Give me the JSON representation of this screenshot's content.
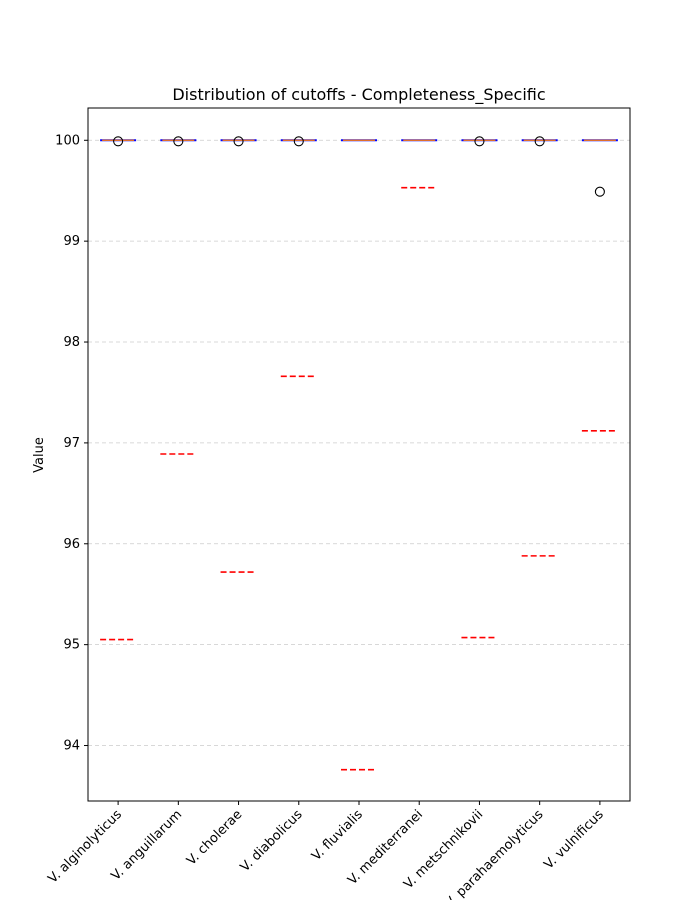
{
  "chart_data": {
    "type": "box",
    "title": "Distribution of cutoffs - Completeness_Specific",
    "xlabel": "",
    "ylabel": "Value",
    "ylim": [
      93.45,
      100.32
    ],
    "yticks": [
      94,
      95,
      96,
      97,
      98,
      99,
      100
    ],
    "grid": "horizontal dashed",
    "categories": [
      "V. alginolyticus",
      "V. anguillarum",
      "V. cholerae",
      "V. diabolicus",
      "V. fluvialis",
      "V. mediterranei",
      "V. metschnikovii",
      "V. parahaemolyticus",
      "V. vulnificus"
    ],
    "series": [
      {
        "name": "",
        "values": [
          100,
          100,
          100,
          100,
          100,
          100,
          100,
          100,
          100
        ]
      }
    ],
    "outliers": [
      [
        99.99
      ],
      [
        99.99
      ],
      [
        99.99
      ],
      [
        99.99
      ],
      [],
      [],
      [
        99.99
      ],
      [
        99.99
      ],
      [
        99.49
      ]
    ],
    "cutoffs": [
      95.05,
      96.89,
      95.72,
      97.66,
      93.76,
      99.53,
      95.07,
      95.88,
      97.12
    ],
    "colors": {
      "box": "#0000ff",
      "median": "#ff7f0e",
      "cutoff": "#ff0000",
      "outlier": "#000000",
      "grid": "#cccccc"
    }
  }
}
